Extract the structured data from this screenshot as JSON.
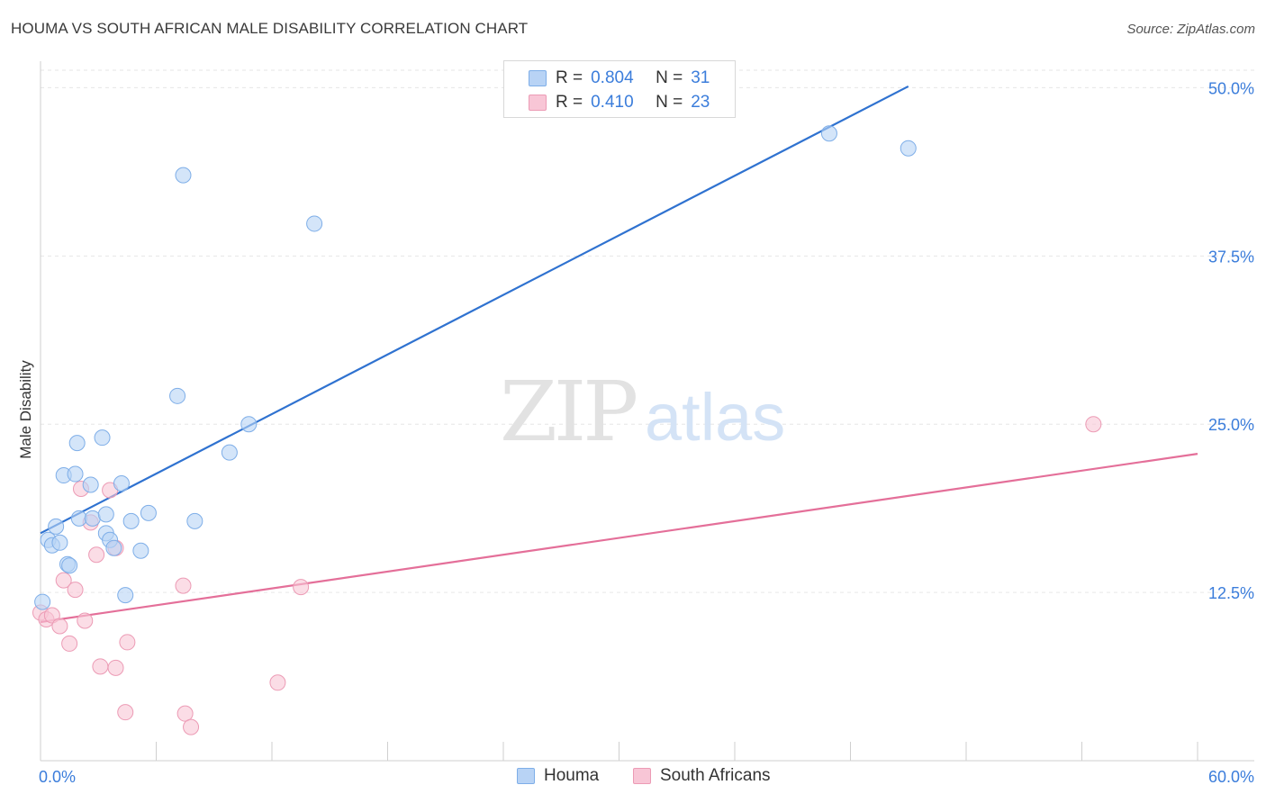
{
  "title": "HOUMA VS SOUTH AFRICAN MALE DISABILITY CORRELATION CHART",
  "source": "Source: ZipAtlas.com",
  "watermark": {
    "zip": "ZIP",
    "atlas": "atlas"
  },
  "legend": {
    "r_label": "R =",
    "n_label": "N =",
    "series": [
      {
        "name": "Houma",
        "r": "0.804",
        "n": "31"
      },
      {
        "name": "South Africans",
        "r": "0.410",
        "n": "23"
      }
    ]
  },
  "colors": {
    "houma_fill": "#b8d3f5",
    "houma_stroke": "#7eaee8",
    "houma_line": "#2f72d0",
    "sa_fill": "#f8c6d6",
    "sa_stroke": "#ec9bb5",
    "sa_line": "#e46f99",
    "tick_label": "#3b7ddb",
    "grid": "#e6e6e6"
  },
  "chart_data": {
    "type": "scatter",
    "title": "HOUMA VS SOUTH AFRICAN MALE DISABILITY CORRELATION CHART",
    "xlabel": "",
    "ylabel": "Male Disability",
    "xlim": [
      0,
      60
    ],
    "ylim": [
      0,
      51.3
    ],
    "x_tick_labels": [
      "0.0%",
      "60.0%"
    ],
    "y_ticks": [
      12.5,
      25.0,
      37.5,
      50.0
    ],
    "y_tick_labels": [
      "12.5%",
      "25.0%",
      "37.5%",
      "50.0%"
    ],
    "grid": true,
    "legend_position": "top-center",
    "series": [
      {
        "name": "Houma",
        "r": 0.804,
        "n": 31,
        "points": [
          [
            0.1,
            11.8
          ],
          [
            0.4,
            16.4
          ],
          [
            0.6,
            16.0
          ],
          [
            0.8,
            17.4
          ],
          [
            1.0,
            16.2
          ],
          [
            1.2,
            21.2
          ],
          [
            1.4,
            14.6
          ],
          [
            1.5,
            14.5
          ],
          [
            1.8,
            21.3
          ],
          [
            1.9,
            23.6
          ],
          [
            2.0,
            18.0
          ],
          [
            2.6,
            20.5
          ],
          [
            2.7,
            18.0
          ],
          [
            3.2,
            24.0
          ],
          [
            3.4,
            18.3
          ],
          [
            3.4,
            16.9
          ],
          [
            3.6,
            16.4
          ],
          [
            3.8,
            15.8
          ],
          [
            4.2,
            20.6
          ],
          [
            4.4,
            12.3
          ],
          [
            4.7,
            17.8
          ],
          [
            5.2,
            15.6
          ],
          [
            5.6,
            18.4
          ],
          [
            7.1,
            27.1
          ],
          [
            7.4,
            43.5
          ],
          [
            8.0,
            17.8
          ],
          [
            9.8,
            22.9
          ],
          [
            10.8,
            25.0
          ],
          [
            14.2,
            39.9
          ],
          [
            40.9,
            46.6
          ],
          [
            45.0,
            45.5
          ]
        ],
        "trend": [
          [
            0,
            16.9
          ],
          [
            45.0,
            50.1
          ]
        ]
      },
      {
        "name": "South Africans",
        "r": 0.41,
        "n": 23,
        "points": [
          [
            0.0,
            11.0
          ],
          [
            0.3,
            10.5
          ],
          [
            0.6,
            10.8
          ],
          [
            1.0,
            10.0
          ],
          [
            1.2,
            13.4
          ],
          [
            1.5,
            8.7
          ],
          [
            1.8,
            12.7
          ],
          [
            2.1,
            20.2
          ],
          [
            2.3,
            10.4
          ],
          [
            2.6,
            17.7
          ],
          [
            2.9,
            15.3
          ],
          [
            3.1,
            7.0
          ],
          [
            3.6,
            20.1
          ],
          [
            3.9,
            15.8
          ],
          [
            3.9,
            6.9
          ],
          [
            4.4,
            3.6
          ],
          [
            4.5,
            8.8
          ],
          [
            7.4,
            13.0
          ],
          [
            7.5,
            3.5
          ],
          [
            7.8,
            2.5
          ],
          [
            12.3,
            5.8
          ],
          [
            13.5,
            12.9
          ],
          [
            54.6,
            25.0
          ]
        ],
        "trend": [
          [
            0,
            10.3
          ],
          [
            60.0,
            22.8
          ]
        ]
      }
    ]
  }
}
